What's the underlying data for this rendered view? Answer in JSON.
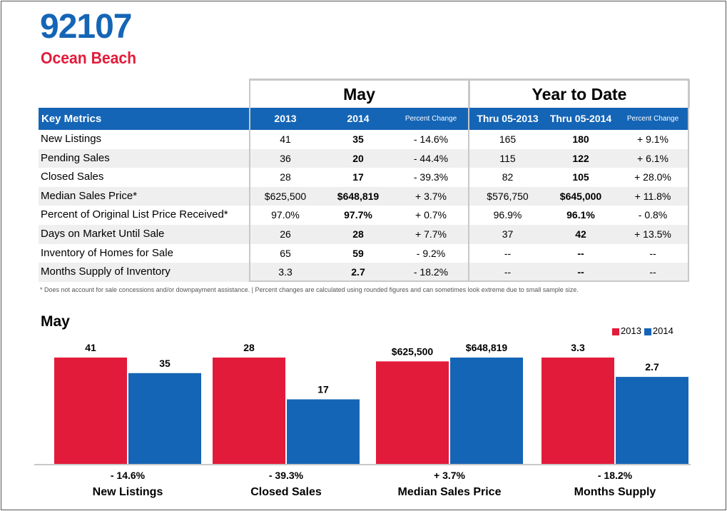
{
  "header": {
    "zip": "92107",
    "area": "Ocean Beach"
  },
  "table": {
    "group_may": "May",
    "group_ytd": "Year to Date",
    "columns": [
      "Key Metrics",
      "2013",
      "2014",
      "Percent Change",
      "Thru 05-2013",
      "Thru 05-2014",
      "Percent Change"
    ],
    "rows": [
      [
        "New Listings",
        "41",
        "35",
        "- 14.6%",
        "165",
        "180",
        "+ 9.1%"
      ],
      [
        "Pending Sales",
        "36",
        "20",
        "- 44.4%",
        "115",
        "122",
        "+ 6.1%"
      ],
      [
        "Closed Sales",
        "28",
        "17",
        "- 39.3%",
        "82",
        "105",
        "+ 28.0%"
      ],
      [
        "Median Sales Price*",
        "$625,500",
        "$648,819",
        "+ 3.7%",
        "$576,750",
        "$645,000",
        "+ 11.8%"
      ],
      [
        "Percent of Original List Price Received*",
        "97.0%",
        "97.7%",
        "+ 0.7%",
        "96.9%",
        "96.1%",
        "- 0.8%"
      ],
      [
        "Days on Market Until Sale",
        "26",
        "28",
        "+ 7.7%",
        "37",
        "42",
        "+ 13.5%"
      ],
      [
        "Inventory of Homes for Sale",
        "65",
        "59",
        "- 9.2%",
        "--",
        "--",
        "--"
      ],
      [
        "Months Supply of Inventory",
        "3.3",
        "2.7",
        "- 18.2%",
        "--",
        "--",
        "--"
      ]
    ],
    "footnote": "* Does not account for sale concessions and/or downpayment assistance.  |  Percent changes are calculated using rounded figures and can sometimes look extreme due to small sample size."
  },
  "chart_data": {
    "type": "bar",
    "title": "May",
    "legend": [
      "2013",
      "2014"
    ],
    "legend_position": "top-right",
    "colors": {
      "2013": "#e31b3a",
      "2014": "#1565b6"
    },
    "groups": [
      {
        "category": "New Listings",
        "change": "- 14.6%",
        "values": [
          41,
          35
        ],
        "labels": [
          "41",
          "35"
        ]
      },
      {
        "category": "Closed Sales",
        "change": "- 39.3%",
        "values": [
          28,
          17
        ],
        "labels": [
          "28",
          "17"
        ]
      },
      {
        "category": "Median Sales Price",
        "change": "+ 3.7%",
        "values": [
          625500,
          648819
        ],
        "labels": [
          "$625,500",
          "$648,819"
        ]
      },
      {
        "category": "Months Supply",
        "change": "- 18.2%",
        "values": [
          3.3,
          2.7
        ],
        "labels": [
          "3.3",
          "2.7"
        ]
      }
    ]
  }
}
